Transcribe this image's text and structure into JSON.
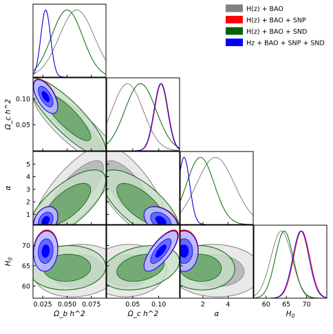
{
  "chart_data": {
    "type": "corner-plot",
    "title": "",
    "parameters": [
      {
        "name": "omega_b",
        "label": "Ω_b h^2",
        "range": [
          0.015,
          0.09
        ],
        "ticks": [
          0.025,
          0.05,
          0.075
        ],
        "tick_labels": [
          "0.025",
          "0.050",
          "0.075"
        ]
      },
      {
        "name": "omega_c",
        "label": "Ω_c h^2",
        "range": [
          0.0,
          0.14
        ],
        "ticks": [
          0.05,
          0.1
        ],
        "tick_labels": [
          "0.05",
          "0.10"
        ]
      },
      {
        "name": "alpha",
        "label": "α",
        "range": [
          0.2,
          6.0
        ],
        "ticks": [
          1,
          2,
          3,
          4,
          5
        ],
        "tick_labels": [
          "1",
          "2",
          "3",
          "4",
          "5"
        ],
        "x_ticks": [
          2,
          4
        ],
        "x_tick_labels": [
          "2",
          "4"
        ]
      },
      {
        "name": "H0",
        "label": "H_0",
        "range": [
          57,
          75
        ],
        "ticks": [
          60,
          65,
          70
        ],
        "tick_labels": [
          "60",
          "65",
          "70"
        ]
      }
    ],
    "legend": {
      "position": "top-right"
    },
    "series": [
      {
        "name": "H(z) + BAO",
        "color": "#808080",
        "means": [
          0.06,
          0.04,
          3.0,
          63.8
        ],
        "sigmas": [
          0.018,
          0.03,
          1.5,
          2.6
        ],
        "corr": [
          [
            0,
            1,
            -0.85
          ],
          [
            0,
            2,
            0.75
          ],
          [
            1,
            2,
            -0.7
          ],
          [
            0,
            3,
            0.1
          ],
          [
            1,
            3,
            0.05
          ],
          [
            2,
            3,
            -0.05
          ]
        ]
      },
      {
        "name": "H(z) + BAO + SNP",
        "color": "#ff0000",
        "means": [
          0.028,
          0.105,
          0.5,
          68.8
        ],
        "sigmas": [
          0.005,
          0.013,
          0.45,
          2.0
        ],
        "corr": [
          [
            0,
            1,
            -0.6
          ],
          [
            0,
            2,
            0.3
          ],
          [
            1,
            2,
            -0.4
          ],
          [
            0,
            3,
            0.1
          ],
          [
            1,
            3,
            0.75
          ],
          [
            2,
            3,
            0.0
          ]
        ]
      },
      {
        "name": "H(z) + BAO + SND",
        "color": "#006400",
        "means": [
          0.05,
          0.065,
          1.8,
          64.5
        ],
        "sigmas": [
          0.016,
          0.03,
          1.1,
          2.2
        ],
        "corr": [
          [
            0,
            1,
            -0.85
          ],
          [
            0,
            2,
            0.7
          ],
          [
            1,
            2,
            -0.7
          ],
          [
            0,
            3,
            0.05
          ],
          [
            1,
            3,
            0.3
          ],
          [
            2,
            3,
            -0.05
          ]
        ]
      },
      {
        "name": "Hz + BAO + SNP + SND",
        "color": "#0000ff",
        "means": [
          0.028,
          0.104,
          0.5,
          68.6
        ],
        "sigmas": [
          0.005,
          0.013,
          0.45,
          2.0
        ],
        "corr": [
          [
            0,
            1,
            -0.6
          ],
          [
            0,
            2,
            0.3
          ],
          [
            1,
            2,
            -0.4
          ],
          [
            0,
            3,
            0.1
          ],
          [
            1,
            3,
            0.75
          ],
          [
            2,
            3,
            0.0
          ]
        ]
      }
    ]
  }
}
